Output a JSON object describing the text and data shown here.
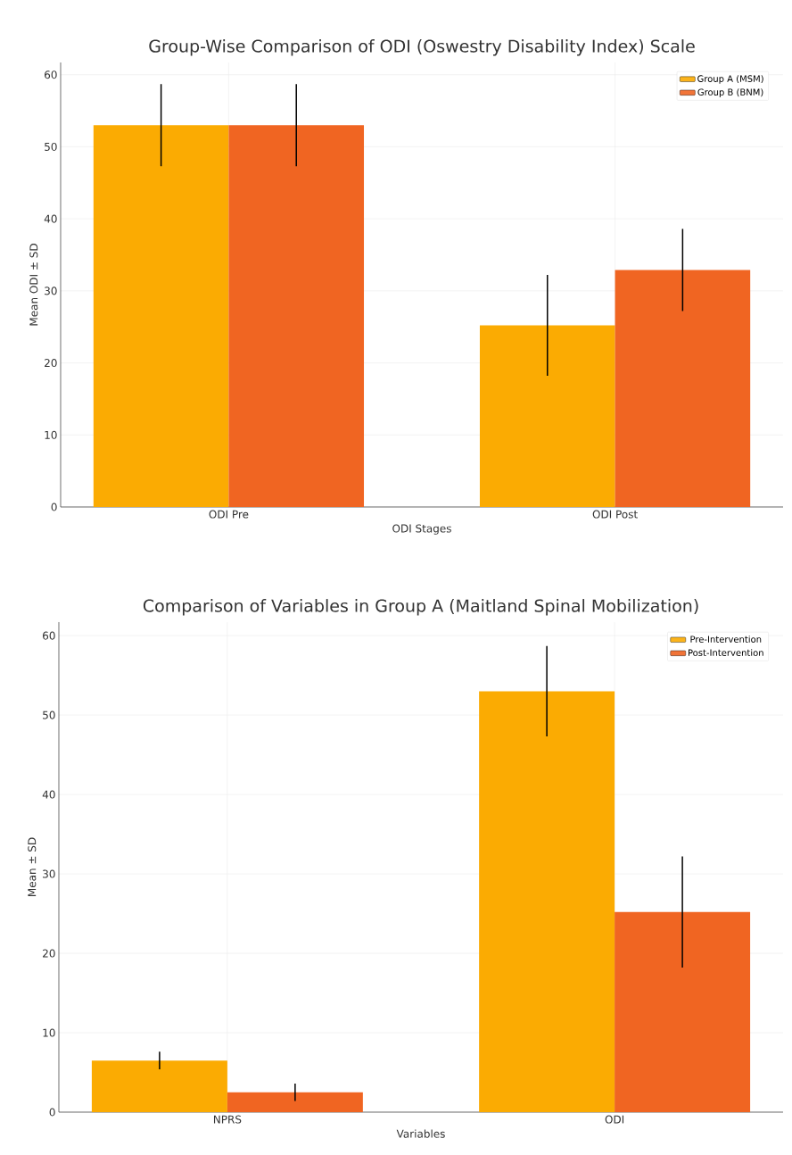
{
  "chart_data": [
    {
      "type": "bar",
      "title": "Group-Wise Comparison of ODI (Oswestry Disability Index) Scale",
      "xlabel": "ODI Stages",
      "ylabel": "Mean ODI ± SD",
      "categories": [
        "ODI Pre",
        "ODI Post"
      ],
      "series": [
        {
          "name": "Group A (MSM)",
          "color": "#fbab02",
          "values": [
            53,
            25.2
          ],
          "errors": [
            5.7,
            7
          ]
        },
        {
          "name": "Group B (BNM)",
          "color": "#f06522",
          "values": [
            53,
            32.9
          ],
          "errors": [
            5.7,
            5.7
          ]
        }
      ],
      "ylim": [
        0,
        61.7
      ],
      "yticks": [
        0,
        10,
        20,
        30,
        40,
        50,
        60
      ],
      "grid": true,
      "legend": "top right"
    },
    {
      "type": "bar",
      "title": "Comparison of Variables in Group A (Maitland Spinal Mobilization)",
      "xlabel": "Variables",
      "ylabel": "Mean ± SD",
      "categories": [
        "NPRS",
        "ODI"
      ],
      "series": [
        {
          "name": "Pre-Intervention",
          "color": "#fbab02",
          "values": [
            6.5,
            53
          ],
          "errors": [
            1.1,
            5.7
          ]
        },
        {
          "name": "Post-Intervention",
          "color": "#f06522",
          "values": [
            2.5,
            25.2
          ],
          "errors": [
            1.1,
            7
          ]
        }
      ],
      "ylim": [
        0,
        61.7
      ],
      "yticks": [
        0,
        10,
        20,
        30,
        40,
        50,
        60
      ],
      "grid": true,
      "legend": "top right"
    }
  ]
}
